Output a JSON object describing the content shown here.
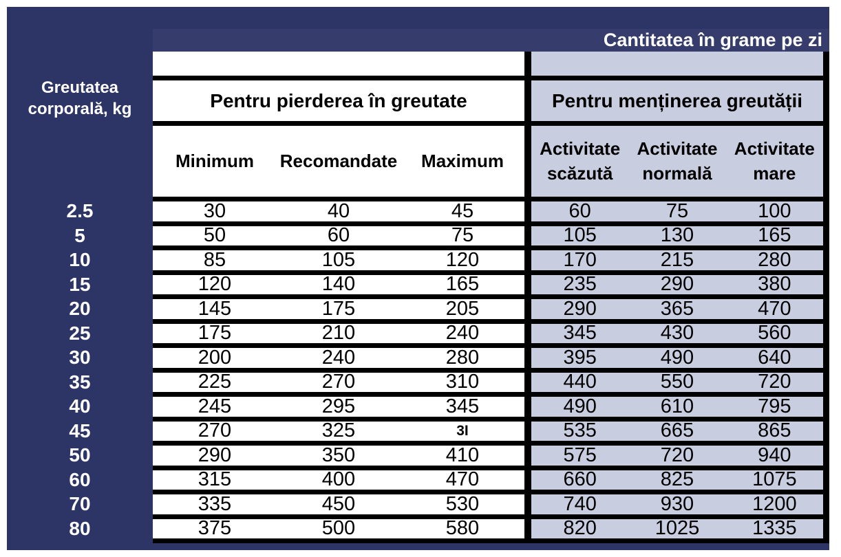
{
  "page": {
    "title_band": "Cantitatea în grame pe zi"
  },
  "weight_column": {
    "label": "Greutatea corporală, kg"
  },
  "sections": {
    "loss": {
      "title": "Pentru pierderea în greutate",
      "columns": [
        "Minimum",
        "Recomandate",
        "Maximum"
      ]
    },
    "maintenance": {
      "title": "Pentru menținerea greutății",
      "columns": [
        "Activitate scăzută",
        "Activitate normală",
        "Activitate mare"
      ]
    }
  },
  "table": {
    "row_header": "weight_kg",
    "rows": [
      [
        "2.5",
        "30",
        "40",
        "45",
        "60",
        "75",
        "100"
      ],
      [
        "5",
        "50",
        "60",
        "75",
        "105",
        "130",
        "165"
      ],
      [
        "10",
        "85",
        "105",
        "120",
        "170",
        "215",
        "280"
      ],
      [
        "15",
        "120",
        "140",
        "165",
        "235",
        "290",
        "380"
      ],
      [
        "20",
        "145",
        "175",
        "205",
        "290",
        "365",
        "470"
      ],
      [
        "25",
        "175",
        "210",
        "240",
        "345",
        "430",
        "560"
      ],
      [
        "30",
        "200",
        "240",
        "280",
        "395",
        "490",
        "640"
      ],
      [
        "35",
        "225",
        "270",
        "310",
        "440",
        "550",
        "720"
      ],
      [
        "40",
        "245",
        "295",
        "345",
        "490",
        "610",
        "795"
      ],
      [
        "45",
        "270",
        "325",
        "3I",
        "535",
        "665",
        "865"
      ],
      [
        "50",
        "290",
        "350",
        "410",
        "575",
        "720",
        "940"
      ],
      [
        "60",
        "315",
        "400",
        "470",
        "660",
        "825",
        "1075"
      ],
      [
        "70",
        "335",
        "450",
        "530",
        "740",
        "930",
        "1200"
      ],
      [
        "80",
        "375",
        "500",
        "580",
        "820",
        "1025",
        "1335"
      ]
    ]
  },
  "colors": {
    "pageBg": "#ffffff",
    "navy": "#2d3466",
    "band": "#363d6c",
    "cellWhite": "#ffffff",
    "cellGray": "#c9cde0",
    "line": "#000000",
    "textLight": "#ffffff",
    "textDark": "#000000"
  }
}
